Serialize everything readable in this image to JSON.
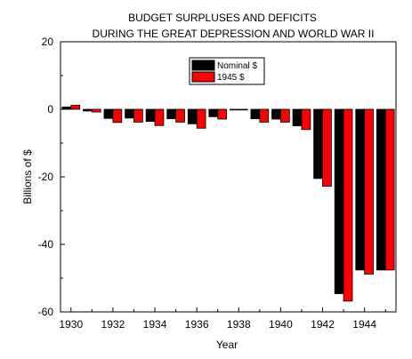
{
  "chart_data": {
    "type": "bar",
    "title": [
      "BUDGET SURPLUSES AND DEFICITS",
      "DURING THE GREAT DEPRESSION AND WORLD WAR II"
    ],
    "xlabel": "Year",
    "ylabel": "Billions of $",
    "xlim": [
      1929.5,
      1945.5
    ],
    "ylim": [
      -60,
      20
    ],
    "x_ticks": [
      1930,
      1932,
      1934,
      1936,
      1938,
      1940,
      1942,
      1944
    ],
    "y_ticks": [
      20,
      0,
      -20,
      -40,
      -60
    ],
    "legend_position": "top-center",
    "grid": false,
    "categories": [
      1930,
      1931,
      1932,
      1933,
      1934,
      1935,
      1936,
      1937,
      1938,
      1939,
      1940,
      1941,
      1942,
      1943,
      1944,
      1945
    ],
    "series": [
      {
        "name": "Nominal $",
        "color": "#000000",
        "values": [
          0.7,
          -0.5,
          -2.7,
          -2.6,
          -3.6,
          -2.8,
          -4.3,
          -2.2,
          -0.1,
          -2.8,
          -2.9,
          -4.9,
          -20.5,
          -54.6,
          -47.6,
          -47.6
        ]
      },
      {
        "name": "1945 $",
        "color": "#ff0000",
        "values": [
          1.2,
          -0.8,
          -3.9,
          -3.8,
          -4.8,
          -3.8,
          -5.6,
          -2.9,
          -0.1,
          -3.8,
          -3.8,
          -6.0,
          -22.8,
          -56.8,
          -48.8,
          -47.6
        ]
      }
    ]
  }
}
